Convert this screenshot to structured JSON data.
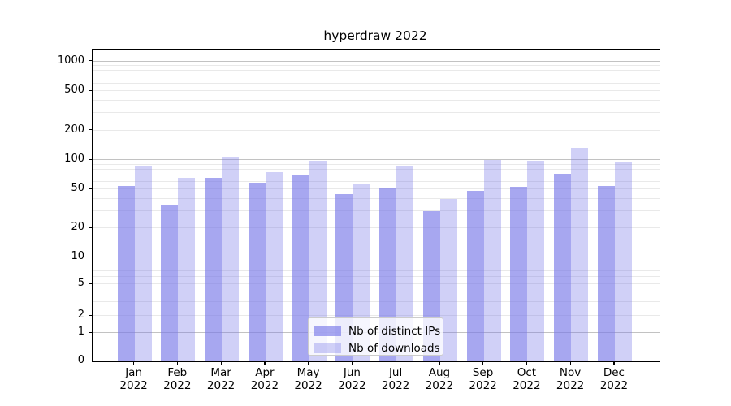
{
  "title": "hyperdraw 2022",
  "y_axis": {
    "tick_values": [
      0,
      1,
      2,
      5,
      10,
      20,
      50,
      100,
      200,
      500,
      1000
    ],
    "tick_labels": [
      "0",
      "1",
      "2",
      "5",
      "10",
      "20",
      "50",
      "100",
      "200",
      "500",
      "1000"
    ]
  },
  "x_axis": {
    "months": [
      "Jan",
      "Feb",
      "Mar",
      "Apr",
      "May",
      "Jun",
      "Jul",
      "Aug",
      "Sep",
      "Oct",
      "Nov",
      "Dec"
    ],
    "year": "2022"
  },
  "legend": {
    "items": [
      {
        "label": "Nb of distinct IPs",
        "color": "rgba(120,120,232,0.65)"
      },
      {
        "label": "Nb of downloads",
        "color": "rgba(120,120,232,0.35)"
      }
    ],
    "position": "lower center inside plot"
  },
  "colors": {
    "bar_distinct_ips": "rgba(120,120,232,0.65)",
    "bar_downloads": "rgba(120,120,232,0.35)",
    "grid_major": "#c2c2c2",
    "grid_minor": "#e9e9e9",
    "text": "#000000"
  },
  "chart_data": {
    "type": "bar",
    "title": "hyperdraw 2022",
    "categories": [
      "Jan 2022",
      "Feb 2022",
      "Mar 2022",
      "Apr 2022",
      "May 2022",
      "Jun 2022",
      "Jul 2022",
      "Aug 2022",
      "Sep 2022",
      "Oct 2022",
      "Nov 2022",
      "Dec 2022"
    ],
    "series": [
      {
        "name": "Nb of distinct IPs",
        "color": "rgba(120,120,232,0.65)",
        "values": [
          54,
          35,
          66,
          58,
          70,
          45,
          51,
          30,
          48,
          53,
          72,
          54
        ]
      },
      {
        "name": "Nb of downloads",
        "color": "rgba(120,120,232,0.35)",
        "values": [
          86,
          66,
          107,
          75,
          98,
          56,
          87,
          40,
          100,
          98,
          133,
          94
        ]
      }
    ],
    "xlabel": "",
    "ylabel": "",
    "yscale": "symlog-like (linear 0-1, log-style above 1)",
    "y_ticks": [
      0,
      1,
      2,
      5,
      10,
      20,
      50,
      100,
      200,
      500,
      1000
    ],
    "ylim": [
      0,
      1000
    ],
    "grid": "horizontal major+minor",
    "legend_position": "lower center inside plot"
  }
}
